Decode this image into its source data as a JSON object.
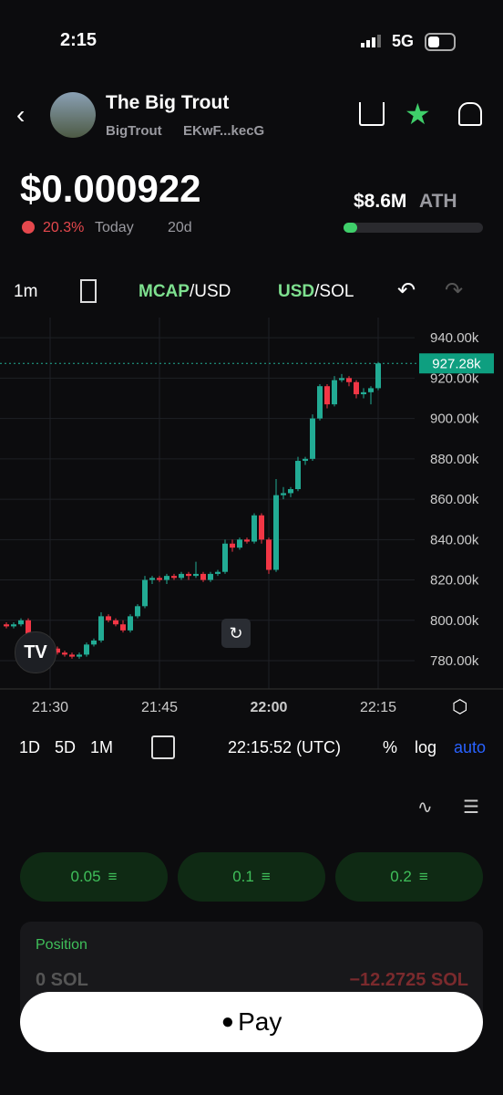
{
  "status": {
    "time": "2:15",
    "network": "5G"
  },
  "header": {
    "name": "The Big Trout",
    "ticker": "BigTrout",
    "address": "EKwF...kecG"
  },
  "price": {
    "value": "$0.000922",
    "change": "20.3%",
    "period": "Today",
    "age": "20d",
    "ath_value": "$8.6M",
    "ath_label": "ATH"
  },
  "toolbar": {
    "interval": "1m",
    "mcap": "MCAP",
    "mcap_unit": "/USD",
    "usd": "USD",
    "usd_unit": "/SOL"
  },
  "chart": {
    "type": "candlestick",
    "categories": [
      "21:24",
      "21:25",
      "21:26",
      "21:27",
      "21:28",
      "21:29",
      "21:30",
      "21:31",
      "21:32",
      "21:33",
      "21:34",
      "21:35",
      "21:36",
      "21:37",
      "21:38",
      "21:39",
      "21:40",
      "21:41",
      "21:42",
      "21:43",
      "21:44",
      "21:45",
      "21:46",
      "21:47",
      "21:48",
      "21:49",
      "21:50",
      "21:51",
      "21:52",
      "21:53",
      "21:54",
      "21:55",
      "21:56",
      "21:57",
      "21:58",
      "21:59",
      "22:00",
      "22:01",
      "22:02",
      "22:03",
      "22:04",
      "22:05",
      "22:06",
      "22:07",
      "22:08",
      "22:09",
      "22:10",
      "22:11",
      "22:12",
      "22:13",
      "22:14",
      "22:15"
    ],
    "open": [
      798,
      797,
      798,
      800,
      793,
      790,
      788,
      786,
      784,
      783,
      782,
      783,
      788,
      790,
      802,
      800,
      798,
      795,
      802,
      807,
      820,
      821,
      820,
      822,
      821,
      823,
      822,
      823,
      820,
      823,
      824,
      838,
      836,
      840,
      839,
      852,
      840,
      825,
      862,
      863,
      865,
      879,
      880,
      900,
      916,
      907,
      919,
      920,
      918,
      912,
      913,
      915
    ],
    "high": [
      799,
      799,
      801,
      801,
      794,
      791,
      789,
      787,
      785,
      784,
      784,
      789,
      791,
      804,
      803,
      801,
      800,
      803,
      808,
      822,
      822,
      822,
      823,
      823,
      824,
      824,
      829,
      824,
      824,
      825,
      840,
      840,
      841,
      841,
      853,
      853,
      841,
      870,
      866,
      866,
      881,
      881,
      902,
      917,
      917,
      921,
      922,
      921,
      919,
      915,
      916,
      928
    ],
    "low": [
      796,
      796,
      797,
      792,
      789,
      787,
      785,
      783,
      782,
      781,
      781,
      782,
      787,
      789,
      799,
      797,
      794,
      794,
      801,
      806,
      818,
      819,
      818,
      820,
      820,
      820,
      821,
      819,
      819,
      822,
      823,
      834,
      835,
      838,
      838,
      838,
      823,
      824,
      860,
      861,
      864,
      877,
      879,
      899,
      905,
      906,
      918,
      916,
      910,
      910,
      907,
      914
    ],
    "close": [
      797,
      798,
      800,
      793,
      790,
      788,
      786,
      784,
      783,
      782,
      783,
      788,
      790,
      802,
      800,
      798,
      795,
      802,
      807,
      820,
      821,
      820,
      822,
      821,
      823,
      822,
      823,
      820,
      823,
      824,
      838,
      836,
      840,
      839,
      852,
      840,
      825,
      862,
      863,
      865,
      879,
      880,
      900,
      916,
      907,
      919,
      920,
      918,
      912,
      913,
      915,
      927.28
    ],
    "up_color": "#22ab94",
    "down_color": "#f23645",
    "ylim": [
      766,
      950
    ],
    "yticks": [
      {
        "value": 780,
        "label": "780.00k"
      },
      {
        "value": 800,
        "label": "800.00k"
      },
      {
        "value": 820,
        "label": "820.00k"
      },
      {
        "value": 840,
        "label": "840.00k"
      },
      {
        "value": 860,
        "label": "860.00k"
      },
      {
        "value": 880,
        "label": "880.00k"
      },
      {
        "value": 900,
        "label": "900.00k"
      },
      {
        "value": 920,
        "label": "920.00k"
      },
      {
        "value": 940,
        "label": "940.00k"
      }
    ],
    "xticks": [
      "21:30",
      "21:45",
      "22:00",
      "22:15"
    ],
    "last_price": 927.28,
    "last_price_label": "927.28k",
    "grid": true
  },
  "range_bar": {
    "ranges": [
      "1D",
      "5D",
      "1M"
    ],
    "clock": "22:15:52 (UTC)",
    "percent": "%",
    "log": "log",
    "auto": "auto"
  },
  "amounts": [
    "0.05",
    "0.1",
    "0.2"
  ],
  "position": {
    "title": "Position",
    "amount": "0 SOL",
    "pnl": "−12.2725 SOL"
  },
  "pay": "Pay"
}
